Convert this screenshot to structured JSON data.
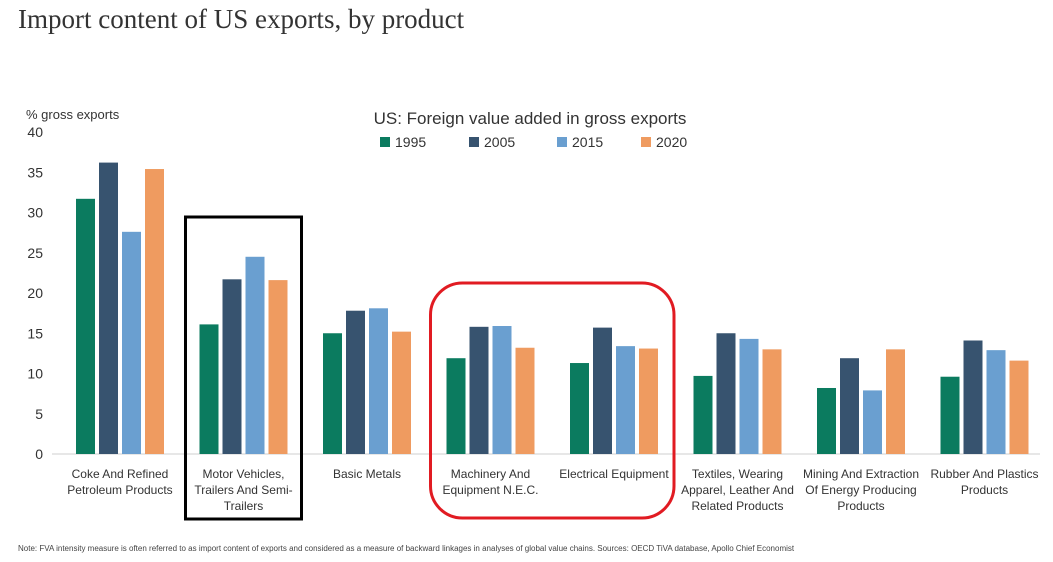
{
  "page": {
    "title": "Import content of US exports, by product",
    "note": "Note: FVA intensity measure is often referred to as import content of exports and considered as a measure of backward linkages in analyses of global value chains. Sources: OECD TiVA database, Apollo Chief Economist"
  },
  "chart_data": {
    "type": "bar",
    "title": "US: Foreign value added in gross exports",
    "ylabel": "% gross exports",
    "ylim": [
      0,
      40
    ],
    "yticks": [
      0,
      5,
      10,
      15,
      20,
      25,
      30,
      35,
      40
    ],
    "grid": false,
    "legend_position": "top-center",
    "categories": [
      [
        "Coke And Refined",
        "Petroleum Products"
      ],
      [
        "Motor Vehicles,",
        "Trailers And Semi-",
        "Trailers"
      ],
      [
        "Basic Metals"
      ],
      [
        "Machinery And",
        "Equipment N.E.C."
      ],
      [
        "Electrical Equipment"
      ],
      [
        "Textiles, Wearing",
        "Apparel, Leather And",
        "Related Products"
      ],
      [
        "Mining And Extraction",
        "Of Energy Producing",
        "Products"
      ],
      [
        "Rubber And Plastics",
        "Products"
      ]
    ],
    "series": [
      {
        "name": "1995",
        "color": "#0b7b5f",
        "values": [
          31.7,
          16.1,
          15.0,
          11.9,
          11.3,
          9.7,
          8.2,
          9.6
        ]
      },
      {
        "name": "2005",
        "color": "#37536f",
        "values": [
          36.2,
          21.7,
          17.8,
          15.8,
          15.7,
          15.0,
          11.9,
          14.1
        ]
      },
      {
        "name": "2015",
        "color": "#6a9fd0",
        "values": [
          27.6,
          24.5,
          18.1,
          15.9,
          13.4,
          14.3,
          7.9,
          12.9
        ]
      },
      {
        "name": "2020",
        "color": "#ef9b60",
        "values": [
          35.4,
          21.6,
          15.2,
          13.2,
          13.1,
          13.0,
          13.0,
          11.6
        ]
      }
    ],
    "annotations": [
      {
        "shape": "rectangle",
        "color": "#000000",
        "categories": [
          1
        ]
      },
      {
        "shape": "rounded-rectangle",
        "color": "#e11b22",
        "categories": [
          3,
          4
        ]
      }
    ]
  }
}
